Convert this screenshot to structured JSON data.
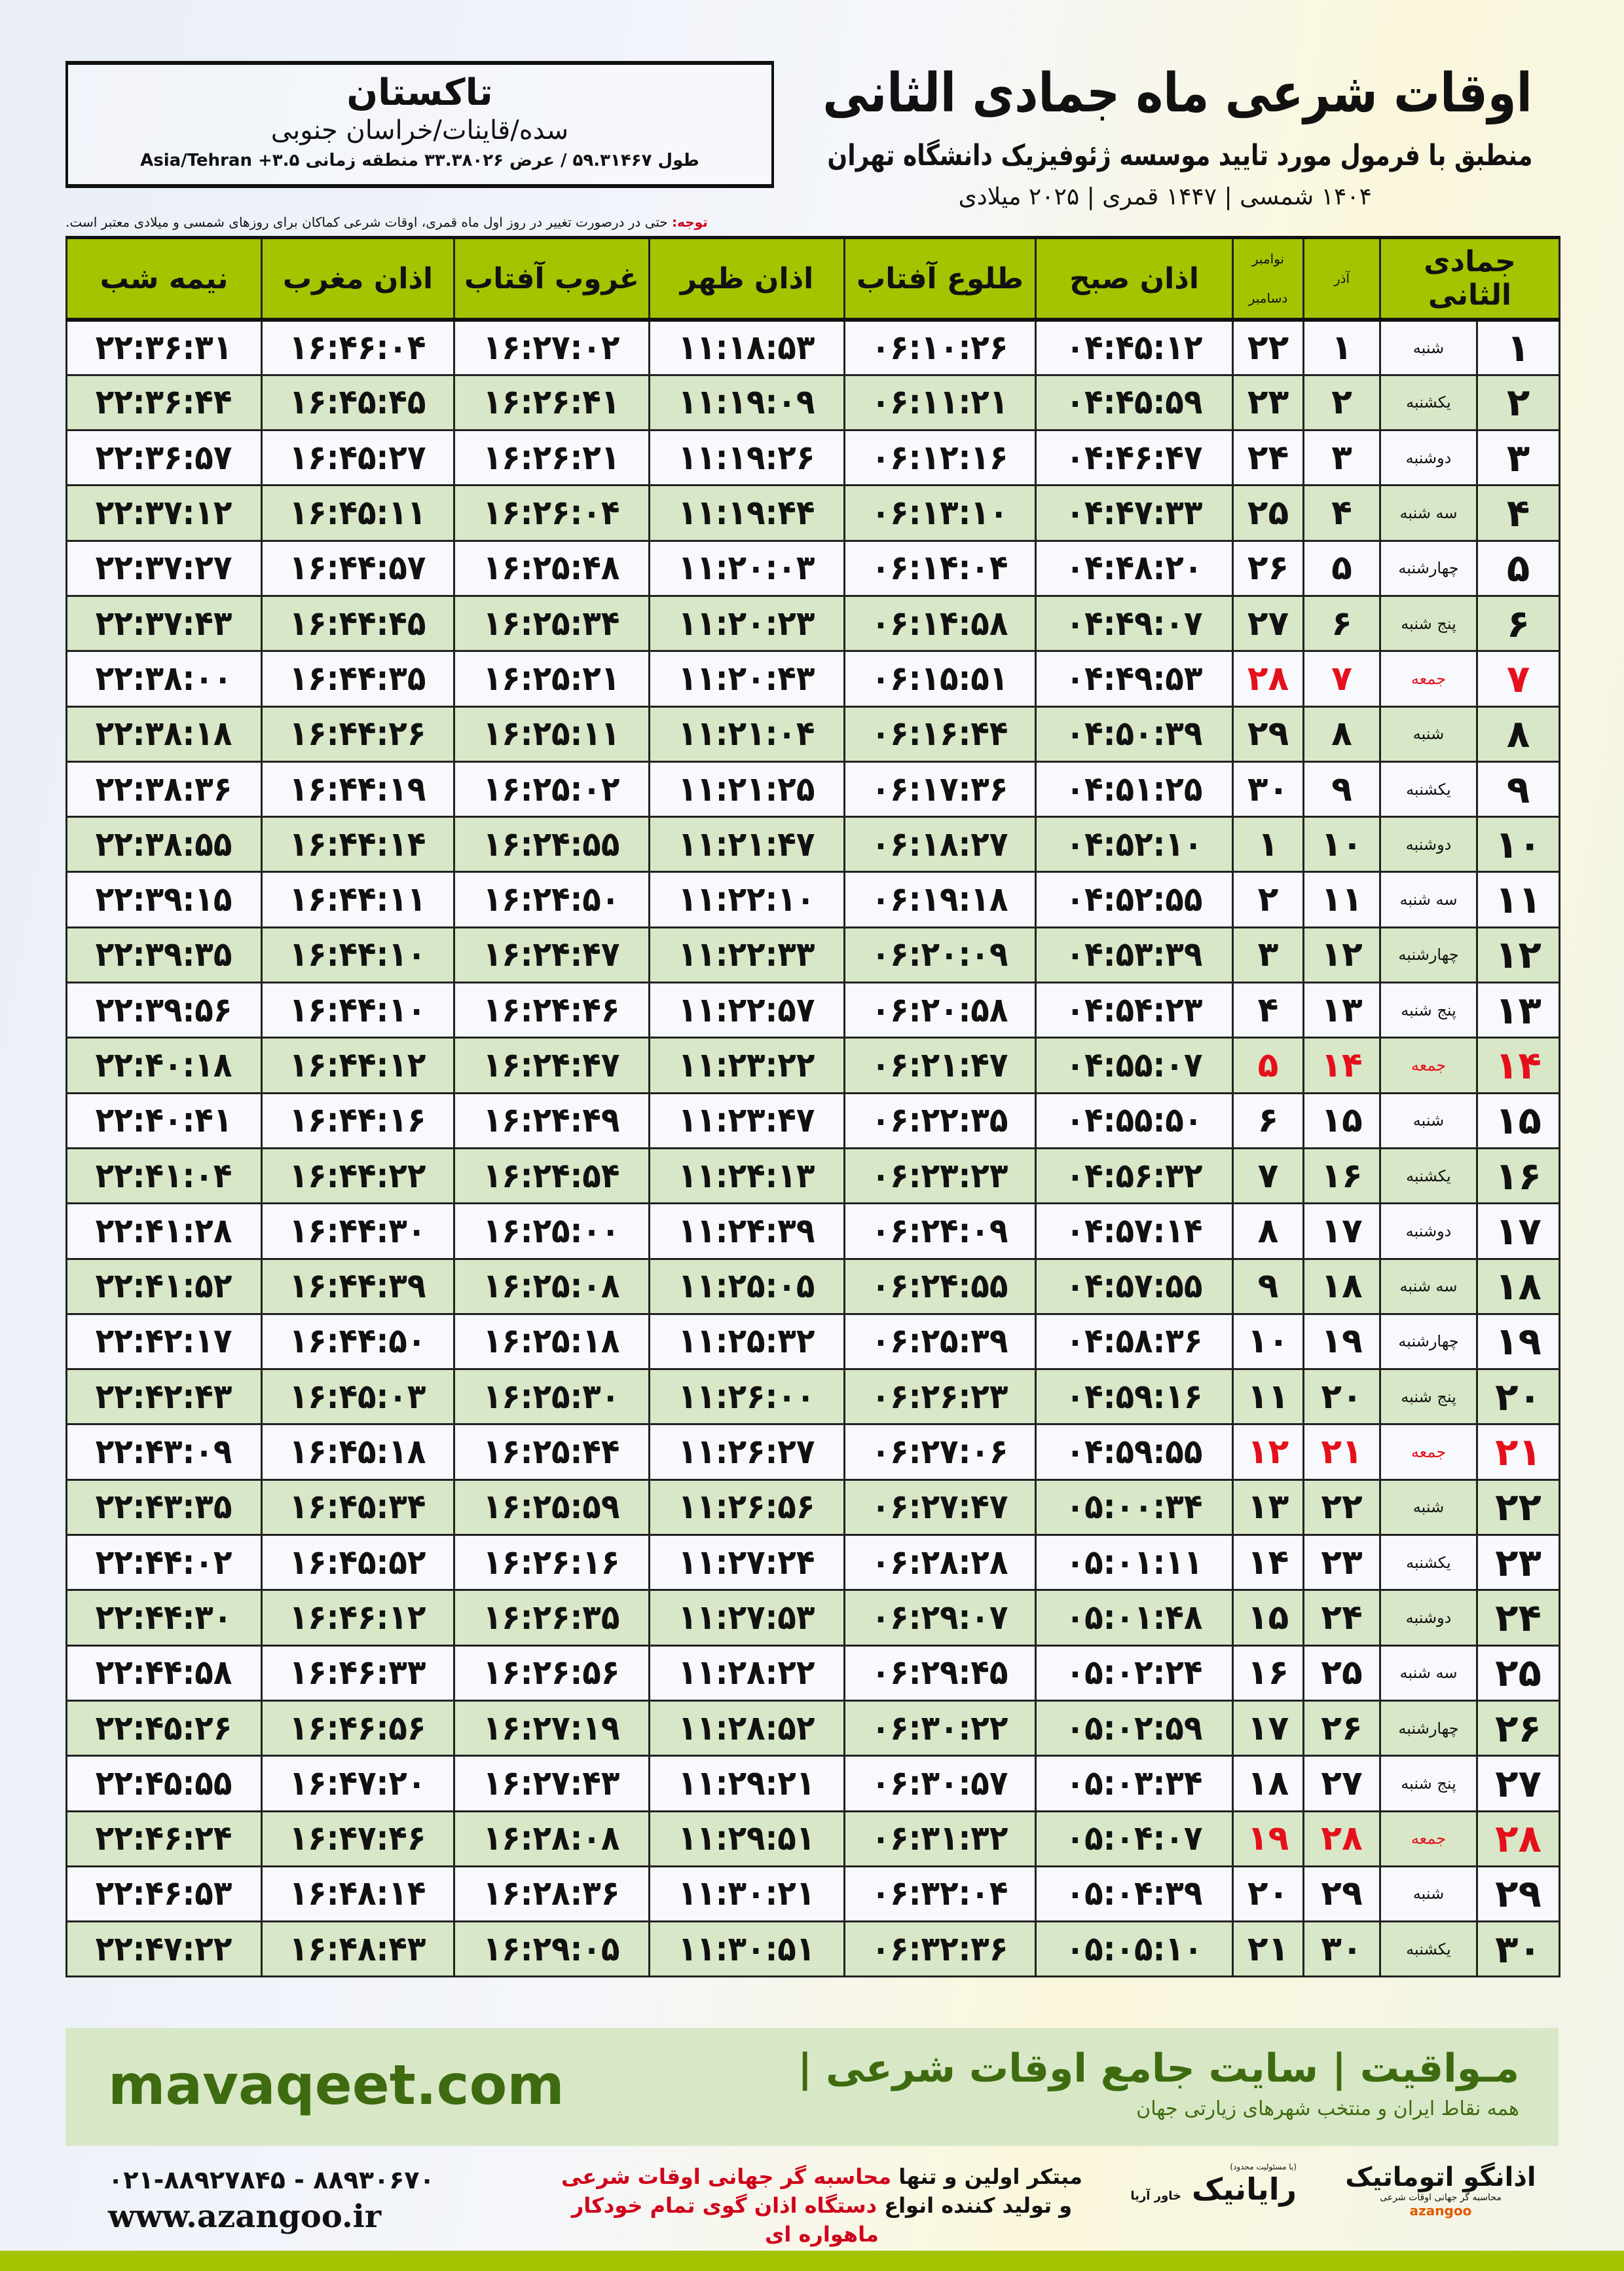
{
  "location": {
    "city": "تاکستان",
    "region": "سده/قاینات/خراسان جنوبی",
    "coords": "طول ۵۹.۳۱۴۶۷ / عرض ۳۳.۳۸۰۲۶ منطقه زمانی ۳.۵+ Asia/Tehran"
  },
  "header": {
    "title": "اوقات شرعی ماه جمادی الثانی",
    "subtitle": "منطبق با فرمول مورد تایید موسسه ژئوفیزیک دانشگاه تهران",
    "years": "۱۴۰۴ شمسی | ۱۴۴۷ قمری | ۲۰۲۵ میلادی"
  },
  "note": {
    "label": "توجه:",
    "text": " حتی در درصورت تغییر در روز اول ماه قمری، اوقات شرعی کماکان برای روزهای شمسی و میلادی معتبر است."
  },
  "table": {
    "headers": {
      "hijri": "جمادی الثانی",
      "azar": "آذر",
      "greg_top": "نوامبر",
      "greg_bottom": "دسامبر",
      "fajr": "اذان صبح",
      "sunrise": "طلوع آفتاب",
      "dhuhr": "اذان ظهر",
      "sunset": "غروب آفتاب",
      "maghrib": "اذان مغرب",
      "midnight": "نیمه شب"
    },
    "friday_color": "#e5101b",
    "header_color": "#a4c400",
    "rows": [
      [
        "۱",
        "شنبه",
        "۱",
        "۲۲",
        "۰۴:۴۵:۱۲",
        "۰۶:۱۰:۲۶",
        "۱۱:۱۸:۵۳",
        "۱۶:۲۷:۰۲",
        "۱۶:۴۶:۰۴",
        "۲۲:۳۶:۳۱"
      ],
      [
        "۲",
        "یکشنبه",
        "۲",
        "۲۳",
        "۰۴:۴۵:۵۹",
        "۰۶:۱۱:۲۱",
        "۱۱:۱۹:۰۹",
        "۱۶:۲۶:۴۱",
        "۱۶:۴۵:۴۵",
        "۲۲:۳۶:۴۴"
      ],
      [
        "۳",
        "دوشنبه",
        "۳",
        "۲۴",
        "۰۴:۴۶:۴۷",
        "۰۶:۱۲:۱۶",
        "۱۱:۱۹:۲۶",
        "۱۶:۲۶:۲۱",
        "۱۶:۴۵:۲۷",
        "۲۲:۳۶:۵۷"
      ],
      [
        "۴",
        "سه شنبه",
        "۴",
        "۲۵",
        "۰۴:۴۷:۳۳",
        "۰۶:۱۳:۱۰",
        "۱۱:۱۹:۴۴",
        "۱۶:۲۶:۰۴",
        "۱۶:۴۵:۱۱",
        "۲۲:۳۷:۱۲"
      ],
      [
        "۵",
        "چهارشنبه",
        "۵",
        "۲۶",
        "۰۴:۴۸:۲۰",
        "۰۶:۱۴:۰۴",
        "۱۱:۲۰:۰۳",
        "۱۶:۲۵:۴۸",
        "۱۶:۴۴:۵۷",
        "۲۲:۳۷:۲۷"
      ],
      [
        "۶",
        "پنج شنبه",
        "۶",
        "۲۷",
        "۰۴:۴۹:۰۷",
        "۰۶:۱۴:۵۸",
        "۱۱:۲۰:۲۳",
        "۱۶:۲۵:۳۴",
        "۱۶:۴۴:۴۵",
        "۲۲:۳۷:۴۳"
      ],
      [
        "۷",
        "جمعه",
        "۷",
        "۲۸",
        "۰۴:۴۹:۵۳",
        "۰۶:۱۵:۵۱",
        "۱۱:۲۰:۴۳",
        "۱۶:۲۵:۲۱",
        "۱۶:۴۴:۳۵",
        "۲۲:۳۸:۰۰"
      ],
      [
        "۸",
        "شنبه",
        "۸",
        "۲۹",
        "۰۴:۵۰:۳۹",
        "۰۶:۱۶:۴۴",
        "۱۱:۲۱:۰۴",
        "۱۶:۲۵:۱۱",
        "۱۶:۴۴:۲۶",
        "۲۲:۳۸:۱۸"
      ],
      [
        "۹",
        "یکشنبه",
        "۹",
        "۳۰",
        "۰۴:۵۱:۲۵",
        "۰۶:۱۷:۳۶",
        "۱۱:۲۱:۲۵",
        "۱۶:۲۵:۰۲",
        "۱۶:۴۴:۱۹",
        "۲۲:۳۸:۳۶"
      ],
      [
        "۱۰",
        "دوشنبه",
        "۱۰",
        "۱",
        "۰۴:۵۲:۱۰",
        "۰۶:۱۸:۲۷",
        "۱۱:۲۱:۴۷",
        "۱۶:۲۴:۵۵",
        "۱۶:۴۴:۱۴",
        "۲۲:۳۸:۵۵"
      ],
      [
        "۱۱",
        "سه شنبه",
        "۱۱",
        "۲",
        "۰۴:۵۲:۵۵",
        "۰۶:۱۹:۱۸",
        "۱۱:۲۲:۱۰",
        "۱۶:۲۴:۵۰",
        "۱۶:۴۴:۱۱",
        "۲۲:۳۹:۱۵"
      ],
      [
        "۱۲",
        "چهارشنبه",
        "۱۲",
        "۳",
        "۰۴:۵۳:۳۹",
        "۰۶:۲۰:۰۹",
        "۱۱:۲۲:۳۳",
        "۱۶:۲۴:۴۷",
        "۱۶:۴۴:۱۰",
        "۲۲:۳۹:۳۵"
      ],
      [
        "۱۳",
        "پنج شنبه",
        "۱۳",
        "۴",
        "۰۴:۵۴:۲۳",
        "۰۶:۲۰:۵۸",
        "۱۱:۲۲:۵۷",
        "۱۶:۲۴:۴۶",
        "۱۶:۴۴:۱۰",
        "۲۲:۳۹:۵۶"
      ],
      [
        "۱۴",
        "جمعه",
        "۱۴",
        "۵",
        "۰۴:۵۵:۰۷",
        "۰۶:۲۱:۴۷",
        "۱۱:۲۳:۲۲",
        "۱۶:۲۴:۴۷",
        "۱۶:۴۴:۱۲",
        "۲۲:۴۰:۱۸"
      ],
      [
        "۱۵",
        "شنبه",
        "۱۵",
        "۶",
        "۰۴:۵۵:۵۰",
        "۰۶:۲۲:۳۵",
        "۱۱:۲۳:۴۷",
        "۱۶:۲۴:۴۹",
        "۱۶:۴۴:۱۶",
        "۲۲:۴۰:۴۱"
      ],
      [
        "۱۶",
        "یکشنبه",
        "۱۶",
        "۷",
        "۰۴:۵۶:۳۲",
        "۰۶:۲۳:۲۳",
        "۱۱:۲۴:۱۳",
        "۱۶:۲۴:۵۴",
        "۱۶:۴۴:۲۲",
        "۲۲:۴۱:۰۴"
      ],
      [
        "۱۷",
        "دوشنبه",
        "۱۷",
        "۸",
        "۰۴:۵۷:۱۴",
        "۰۶:۲۴:۰۹",
        "۱۱:۲۴:۳۹",
        "۱۶:۲۵:۰۰",
        "۱۶:۴۴:۳۰",
        "۲۲:۴۱:۲۸"
      ],
      [
        "۱۸",
        "سه شنبه",
        "۱۸",
        "۹",
        "۰۴:۵۷:۵۵",
        "۰۶:۲۴:۵۵",
        "۱۱:۲۵:۰۵",
        "۱۶:۲۵:۰۸",
        "۱۶:۴۴:۳۹",
        "۲۲:۴۱:۵۲"
      ],
      [
        "۱۹",
        "چهارشنبه",
        "۱۹",
        "۱۰",
        "۰۴:۵۸:۳۶",
        "۰۶:۲۵:۳۹",
        "۱۱:۲۵:۳۲",
        "۱۶:۲۵:۱۸",
        "۱۶:۴۴:۵۰",
        "۲۲:۴۲:۱۷"
      ],
      [
        "۲۰",
        "پنج شنبه",
        "۲۰",
        "۱۱",
        "۰۴:۵۹:۱۶",
        "۰۶:۲۶:۲۳",
        "۱۱:۲۶:۰۰",
        "۱۶:۲۵:۳۰",
        "۱۶:۴۵:۰۳",
        "۲۲:۴۲:۴۳"
      ],
      [
        "۲۱",
        "جمعه",
        "۲۱",
        "۱۲",
        "۰۴:۵۹:۵۵",
        "۰۶:۲۷:۰۶",
        "۱۱:۲۶:۲۷",
        "۱۶:۲۵:۴۴",
        "۱۶:۴۵:۱۸",
        "۲۲:۴۳:۰۹"
      ],
      [
        "۲۲",
        "شنبه",
        "۲۲",
        "۱۳",
        "۰۵:۰۰:۳۴",
        "۰۶:۲۷:۴۷",
        "۱۱:۲۶:۵۶",
        "۱۶:۲۵:۵۹",
        "۱۶:۴۵:۳۴",
        "۲۲:۴۳:۳۵"
      ],
      [
        "۲۳",
        "یکشنبه",
        "۲۳",
        "۱۴",
        "۰۵:۰۱:۱۱",
        "۰۶:۲۸:۲۸",
        "۱۱:۲۷:۲۴",
        "۱۶:۲۶:۱۶",
        "۱۶:۴۵:۵۲",
        "۲۲:۴۴:۰۲"
      ],
      [
        "۲۴",
        "دوشنبه",
        "۲۴",
        "۱۵",
        "۰۵:۰۱:۴۸",
        "۰۶:۲۹:۰۷",
        "۱۱:۲۷:۵۳",
        "۱۶:۲۶:۳۵",
        "۱۶:۴۶:۱۲",
        "۲۲:۴۴:۳۰"
      ],
      [
        "۲۵",
        "سه شنبه",
        "۲۵",
        "۱۶",
        "۰۵:۰۲:۲۴",
        "۰۶:۲۹:۴۵",
        "۱۱:۲۸:۲۲",
        "۱۶:۲۶:۵۶",
        "۱۶:۴۶:۳۳",
        "۲۲:۴۴:۵۸"
      ],
      [
        "۲۶",
        "چهارشنبه",
        "۲۶",
        "۱۷",
        "۰۵:۰۲:۵۹",
        "۰۶:۳۰:۲۲",
        "۱۱:۲۸:۵۲",
        "۱۶:۲۷:۱۹",
        "۱۶:۴۶:۵۶",
        "۲۲:۴۵:۲۶"
      ],
      [
        "۲۷",
        "پنج شنبه",
        "۲۷",
        "۱۸",
        "۰۵:۰۳:۳۴",
        "۰۶:۳۰:۵۷",
        "۱۱:۲۹:۲۱",
        "۱۶:۲۷:۴۳",
        "۱۶:۴۷:۲۰",
        "۲۲:۴۵:۵۵"
      ],
      [
        "۲۸",
        "جمعه",
        "۲۸",
        "۱۹",
        "۰۵:۰۴:۰۷",
        "۰۶:۳۱:۳۲",
        "۱۱:۲۹:۵۱",
        "۱۶:۲۸:۰۸",
        "۱۶:۴۷:۴۶",
        "۲۲:۴۶:۲۴"
      ],
      [
        "۲۹",
        "شنبه",
        "۲۹",
        "۲۰",
        "۰۵:۰۴:۳۹",
        "۰۶:۳۲:۰۴",
        "۱۱:۳۰:۲۱",
        "۱۶:۲۸:۳۶",
        "۱۶:۴۸:۱۴",
        "۲۲:۴۶:۵۳"
      ],
      [
        "۳۰",
        "یکشنبه",
        "۳۰",
        "۲۱",
        "۰۵:۰۵:۱۰",
        "۰۶:۳۲:۳۶",
        "۱۱:۳۰:۵۱",
        "۱۶:۲۹:۰۵",
        "۱۶:۴۸:۴۳",
        "۲۲:۴۷:۲۲"
      ]
    ]
  },
  "banner": {
    "site": "mavaqeet.com",
    "brand": "مـواقیت",
    "tagline": " | سایت جامع اوقات شرعی | ",
    "tagline_sub": "همه نقاط ایران و منتخب شهرهای زیارتی جهان"
  },
  "footer": {
    "phone": "۰۲۱-۸۸۹۲۷۸۴۵ - ۸۸۹۳۰۶۷۰",
    "web": "www.azangoo.ir",
    "promo1_a": "مبتکر اولین و تنها ",
    "promo1_b": "محاسبه گر جهانی اوقات شرعی",
    "promo2_a": "و تولید کننده انواع ",
    "promo2_b": "دستگاه اذان گوی تمام خودکار ماهواره ای",
    "logo1": "رایانیک",
    "logo1_sub": "خاور آریا",
    "logo1_note": "(با مسئولیت محدود)",
    "logo2": "اذانگو اتوماتیک",
    "logo2_sub": "محاسبه گر جهانی اوقات شرعی",
    "logo2_mark": "azangoo"
  }
}
